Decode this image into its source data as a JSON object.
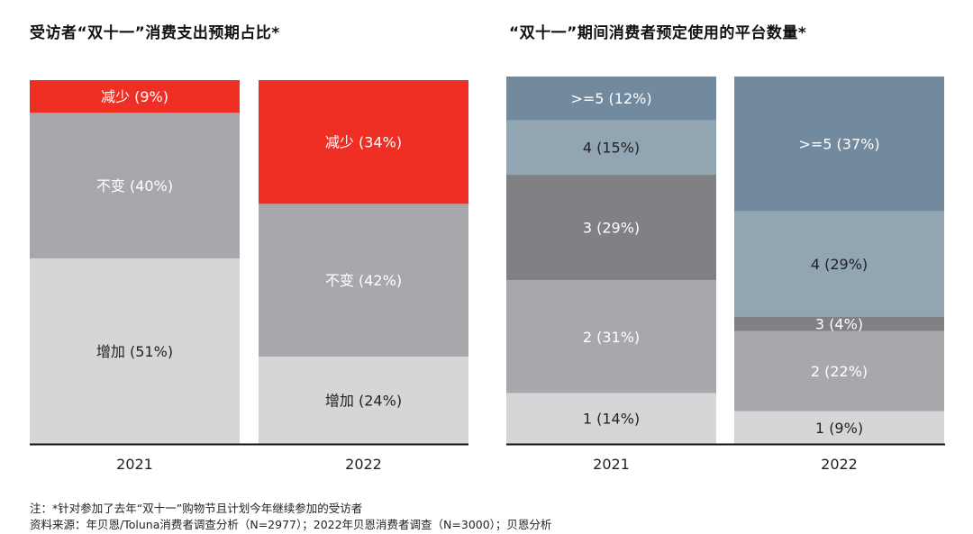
{
  "chart_data": [
    {
      "type": "stacked-bar",
      "title": "受访者“双十一”消费支出预期占比*",
      "categories": [
        "2021",
        "2022"
      ],
      "series": [
        {
          "name": "增加",
          "values": [
            51,
            24
          ],
          "labels": [
            "增加 (51%)",
            "增加 (24%)"
          ],
          "color": "#d5d6d7",
          "text_color": "#222222"
        },
        {
          "name": "不变",
          "values": [
            40,
            42
          ],
          "labels": [
            "不变 (40%)",
            "不变 (42%)"
          ],
          "color": "#a7a8ab",
          "text_color": "#ffffff"
        },
        {
          "name": "减少",
          "values": [
            9,
            34
          ],
          "labels": [
            "减少 (9%)",
            "减少 (34%)"
          ],
          "color": "#ef2f23",
          "text_color": "#ffffff"
        }
      ],
      "ylim": [
        0,
        100
      ]
    },
    {
      "type": "stacked-bar",
      "title": "“双十一”期间消费者预定使用的平台数量*",
      "categories": [
        "2021",
        "2022"
      ],
      "series": [
        {
          "name": "1",
          "values": [
            14,
            9
          ],
          "labels": [
            "1 (14%)",
            "1 (9%)"
          ],
          "color": "#d5d6d7",
          "text_color": "#222222"
        },
        {
          "name": "2",
          "values": [
            31,
            22
          ],
          "labels": [
            "2 (31%)",
            "2 (22%)"
          ],
          "color": "#a7a8ab",
          "text_color": "#ffffff"
        },
        {
          "name": "3",
          "values": [
            29,
            4
          ],
          "labels": [
            "3 (29%)",
            "3 (4%)"
          ],
          "color": "#808184",
          "text_color": "#ffffff"
        },
        {
          "name": "4",
          "values": [
            15,
            29
          ],
          "labels": [
            "4 (15%)",
            "4 (29%)"
          ],
          "color": "#91a5b3",
          "text_color": "#222222"
        },
        {
          "name": ">=5",
          "values": [
            12,
            37
          ],
          "labels": [
            ">=5 (12%)",
            ">=5 (37%)"
          ],
          "color": "#718a9d",
          "text_color": "#ffffff"
        }
      ],
      "ylim": [
        0,
        100
      ]
    }
  ],
  "notes": {
    "line1": "注：*针对参加了去年“双十一”购物节且计划今年继续参加的受访者",
    "line2": "资料来源：年贝恩/Toluna消费者调查分析（N=2977）；2022年贝恩消费者调查（N=3000）；贝恩分析"
  }
}
